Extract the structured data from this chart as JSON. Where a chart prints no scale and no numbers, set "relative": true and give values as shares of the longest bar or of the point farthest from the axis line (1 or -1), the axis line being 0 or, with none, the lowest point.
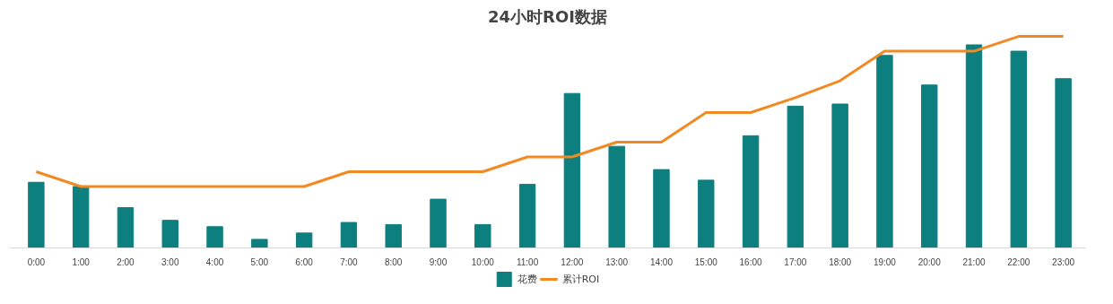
{
  "chart_data": {
    "type": "bar",
    "title": "24小时ROI数据",
    "relative": true,
    "legend": "bottom",
    "grid": false,
    "categories": [
      "0:00",
      "1:00",
      "2:00",
      "3:00",
      "4:00",
      "5:00",
      "6:00",
      "7:00",
      "8:00",
      "9:00",
      "10:00",
      "11:00",
      "12:00",
      "13:00",
      "14:00",
      "15:00",
      "16:00",
      "17:00",
      "18:00",
      "19:00",
      "20:00",
      "21:00",
      "22:00",
      "23:00"
    ],
    "series": [
      {
        "name": "花费",
        "color": "#0e7f7f",
        "values": [
          0.31,
          0.29,
          0.19,
          0.13,
          0.1,
          0.04,
          0.07,
          0.12,
          0.11,
          0.23,
          0.11,
          0.3,
          0.73,
          0.48,
          0.37,
          0.32,
          0.53,
          0.67,
          0.68,
          0.91,
          0.77,
          0.96,
          0.93,
          0.8
        ]
      },
      {
        "name": "累计ROI",
        "type": "line",
        "color": "#f28a24",
        "values": [
          0.36,
          0.29,
          0.29,
          0.29,
          0.29,
          0.29,
          0.29,
          0.36,
          0.36,
          0.36,
          0.36,
          0.43,
          0.43,
          0.5,
          0.5,
          0.64,
          0.64,
          0.71,
          0.79,
          0.93,
          0.93,
          0.93,
          1,
          1
        ]
      }
    ]
  }
}
